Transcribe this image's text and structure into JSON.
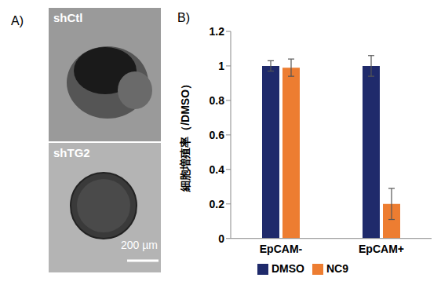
{
  "chart_data": {
    "type": "bar",
    "categories": [
      "EpCAM-",
      "EpCAM+"
    ],
    "series": [
      {
        "name": "DMSO",
        "color": "#1f2a6b",
        "values": [
          1,
          1
        ],
        "error": [
          0.03,
          0.06
        ]
      },
      {
        "name": "NC9",
        "color": "#ed7d31",
        "values": [
          0.99,
          0.2
        ],
        "error": [
          0.05,
          0.09
        ]
      }
    ],
    "y_label": "細胞増殖率（/DMSO）",
    "ylim": [
      0,
      1.2
    ],
    "yticks": [
      0,
      0.2,
      0.4,
      0.6,
      0.8,
      1,
      1.2
    ],
    "grid": false,
    "legend": "bottom"
  },
  "figure": {
    "panel_labels": [
      "A)",
      "B)"
    ],
    "images": [
      {
        "label": "shCtl"
      },
      {
        "label": "shTG2"
      }
    ],
    "scale_bar": "200 µm"
  }
}
